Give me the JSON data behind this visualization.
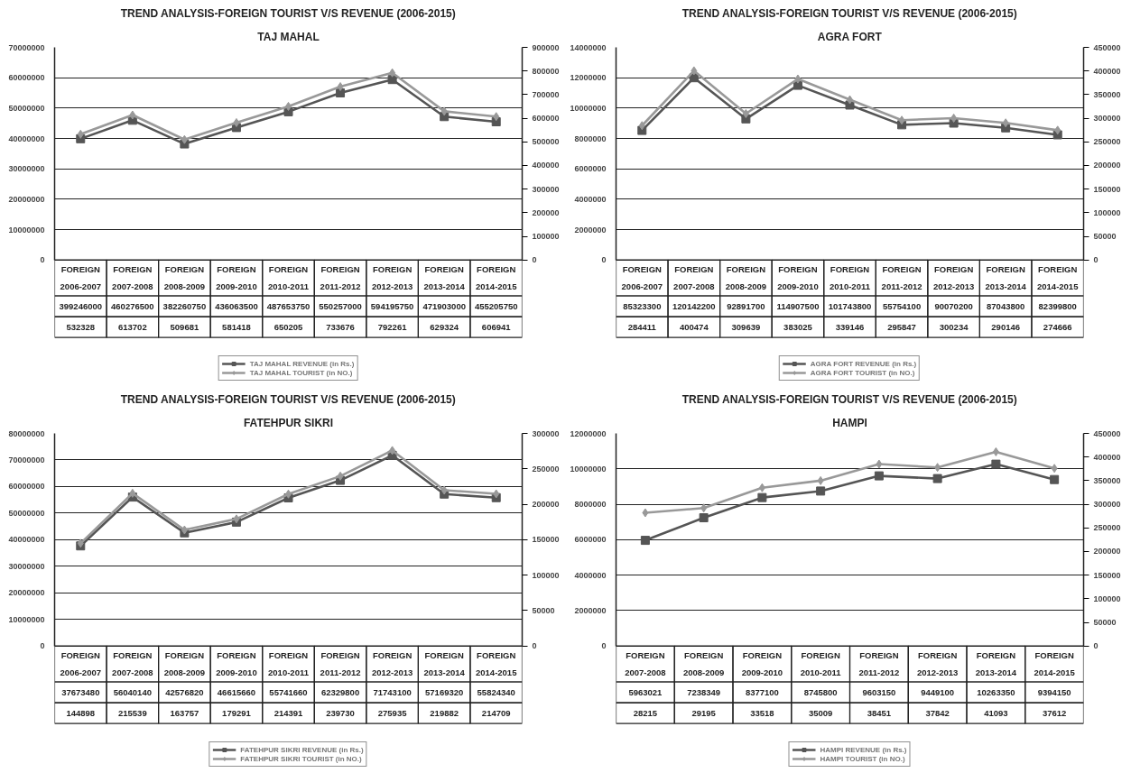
{
  "chart_data": [
    {
      "type": "line",
      "title": "TREND ANALYSIS-FOREIGN TOURIST V/S REVENUE (2006-2015)",
      "subtitle": "TAJ MAHAL",
      "categories": [
        "FOREIGN\n2006-2007",
        "FOREIGN\n2007-2008",
        "FOREIGN\n2008-2009",
        "FOREIGN\n2009-2010",
        "FOREIGN\n2010-2011",
        "FOREIGN\n2011-2012",
        "FOREIGN\n2012-2013",
        "FOREIGN\n2013-2014",
        "FOREIGN\n2014-2015"
      ],
      "ylim": [
        0,
        70000000
      ],
      "yticks": [
        0,
        10000000,
        20000000,
        30000000,
        40000000,
        50000000,
        60000000,
        70000000
      ],
      "y2lim": [
        0,
        900000
      ],
      "y2ticks": [
        0,
        100000,
        200000,
        300000,
        400000,
        500000,
        600000,
        700000,
        800000,
        900000
      ],
      "grid": "y",
      "legend": "bottom",
      "annotations": [
        "399246000",
        "460276500",
        "382260750",
        "436063500",
        "487653750",
        "550257000",
        "594195750",
        "471903000",
        "455205750"
      ],
      "series": [
        {
          "name": "TAJ MAHAL REVENUE (in Rs.)",
          "color": "#555555",
          "marker": "square",
          "values": [
            39900000,
            46000000,
            38200000,
            43600000,
            48800000,
            55000000,
            59400000,
            47200000,
            45500000
          ]
        },
        {
          "name": "TAJ MAHAL TOURIST (in NO.)",
          "color": "#999999",
          "marker": "diamond",
          "axis": "y2",
          "values": [
            532328,
            613702,
            509681,
            581418,
            650205,
            733676,
            792261,
            629324,
            606941
          ],
          "value_labels": [
            "532328",
            "613702",
            "509681",
            "581418",
            "650205",
            "733676",
            "792261",
            "629324",
            "606941"
          ]
        }
      ]
    },
    {
      "type": "line",
      "title": "TREND ANALYSIS-FOREIGN TOURIST V/S REVENUE (2006-2015)",
      "subtitle": "AGRA FORT",
      "categories": [
        "FOREIGN\n2006-2007",
        "FOREIGN\n2007-2008",
        "FOREIGN\n2008-2009",
        "FOREIGN\n2009-2010",
        "FOREIGN\n2010-2011",
        "FOREIGN\n2011-2012",
        "FOREIGN\n2012-2013",
        "FOREIGN\n2013-2014",
        "FOREIGN\n2014-2015"
      ],
      "ylim": [
        0,
        14000000
      ],
      "yticks": [
        0,
        2000000,
        4000000,
        6000000,
        8000000,
        10000000,
        12000000,
        14000000
      ],
      "y2lim": [
        0,
        450000
      ],
      "y2ticks": [
        0,
        50000,
        100000,
        150000,
        200000,
        250000,
        300000,
        350000,
        400000,
        450000
      ],
      "grid": "y",
      "legend": "bottom",
      "annotations": [
        "85323300",
        "120142200",
        "92891700",
        "114907500",
        "101743800",
        "55754100",
        "90070200",
        "87043800",
        "82399800"
      ],
      "series": [
        {
          "name": "AGRA FORT REVENUE (in Rs.)",
          "color": "#555555",
          "marker": "square",
          "values": [
            8530000,
            12000000,
            9290000,
            11500000,
            10200000,
            8900000,
            9010000,
            8700000,
            8240000
          ]
        },
        {
          "name": "AGRA FORT TOURIST (in NO.)",
          "color": "#999999",
          "marker": "diamond",
          "axis": "y2",
          "values": [
            284411,
            400474,
            309639,
            383025,
            339146,
            295847,
            300234,
            290146,
            274666
          ],
          "value_labels": [
            "284411",
            "400474",
            "309639",
            "383025",
            "339146",
            "295847",
            "300234",
            "290146",
            "274666"
          ]
        }
      ]
    },
    {
      "type": "line",
      "title": "TREND ANALYSIS-FOREIGN TOURIST V/S REVENUE (2006-2015)",
      "subtitle": "FATEHPUR SIKRI",
      "categories": [
        "FOREIGN\n2006-2007",
        "FOREIGN\n2007-2008",
        "FOREIGN\n2008-2009",
        "FOREIGN\n2009-2010",
        "FOREIGN\n2010-2011",
        "FOREIGN\n2011-2012",
        "FOREIGN\n2012-2013",
        "FOREIGN\n2013-2014",
        "FOREIGN\n2014-2015"
      ],
      "ylim": [
        0,
        80000000
      ],
      "yticks": [
        0,
        10000000,
        20000000,
        30000000,
        40000000,
        50000000,
        60000000,
        70000000,
        80000000
      ],
      "y2lim": [
        0,
        300000
      ],
      "y2ticks": [
        0,
        50000,
        100000,
        150000,
        200000,
        250000,
        300000
      ],
      "grid": "y",
      "legend": "bottom",
      "series": [
        {
          "name": "FATEHPUR SIKRI REVENUE (in Rs.)",
          "color": "#555555",
          "marker": "square",
          "values": [
            37673480,
            56040140,
            42576820,
            46615660,
            55741660,
            62329800,
            71743100,
            57169320,
            55824340
          ],
          "value_labels": [
            "37673480",
            "56040140",
            "42576820",
            "46615660",
            "55741660",
            "62329800",
            "71743100",
            "57169320",
            "55824340"
          ]
        },
        {
          "name": "FATEHPUR SIKRI TOURIST (in NO.)",
          "color": "#999999",
          "marker": "diamond",
          "axis": "y2",
          "values": [
            144898,
            215539,
            163757,
            179291,
            214391,
            239730,
            275935,
            219882,
            214709
          ],
          "value_labels": [
            "144898",
            "215539",
            "163757",
            "179291",
            "214391",
            "239730",
            "275935",
            "219882",
            "214709"
          ]
        }
      ]
    },
    {
      "type": "line",
      "title": "TREND ANALYSIS-FOREIGN TOURIST V/S REVENUE (2006-2015)",
      "subtitle": "HAMPI",
      "categories": [
        "FOREIGN\n2007-2008",
        "FOREIGN\n2008-2009",
        "FOREIGN\n2009-2010",
        "FOREIGN\n2010-2011",
        "FOREIGN\n2011-2012",
        "FOREIGN\n2012-2013",
        "FOREIGN\n2013-2014",
        "FOREIGN\n2014-2015"
      ],
      "ylim": [
        0,
        12000000
      ],
      "yticks": [
        0,
        2000000,
        4000000,
        6000000,
        8000000,
        10000000,
        12000000
      ],
      "y2lim": [
        0,
        450000
      ],
      "y2ticks": [
        0,
        50000,
        100000,
        150000,
        200000,
        250000,
        300000,
        350000,
        400000,
        450000
      ],
      "grid": "y",
      "legend": "bottom",
      "annotations": [
        "28215",
        "29195",
        "33518",
        "35009",
        "38451",
        "37842",
        "41093",
        "37612"
      ],
      "series": [
        {
          "name": "HAMPI REVENUE (in Rs.)",
          "color": "#555555",
          "marker": "square",
          "values": [
            5963021,
            7238349,
            8377100,
            8745800,
            9603150,
            9449100,
            10263350,
            9394150
          ],
          "value_labels": [
            "5963021",
            "7238349",
            "8377100",
            "8745800",
            "9603150",
            "9449100",
            "10263350",
            "9394150"
          ]
        },
        {
          "name": "HAMPI TOURIST (in NO.)",
          "color": "#999999",
          "marker": "diamond",
          "axis": "y2",
          "values": [
            282000,
            292000,
            335000,
            350000,
            385000,
            378000,
            411000,
            376000
          ]
        }
      ]
    }
  ]
}
